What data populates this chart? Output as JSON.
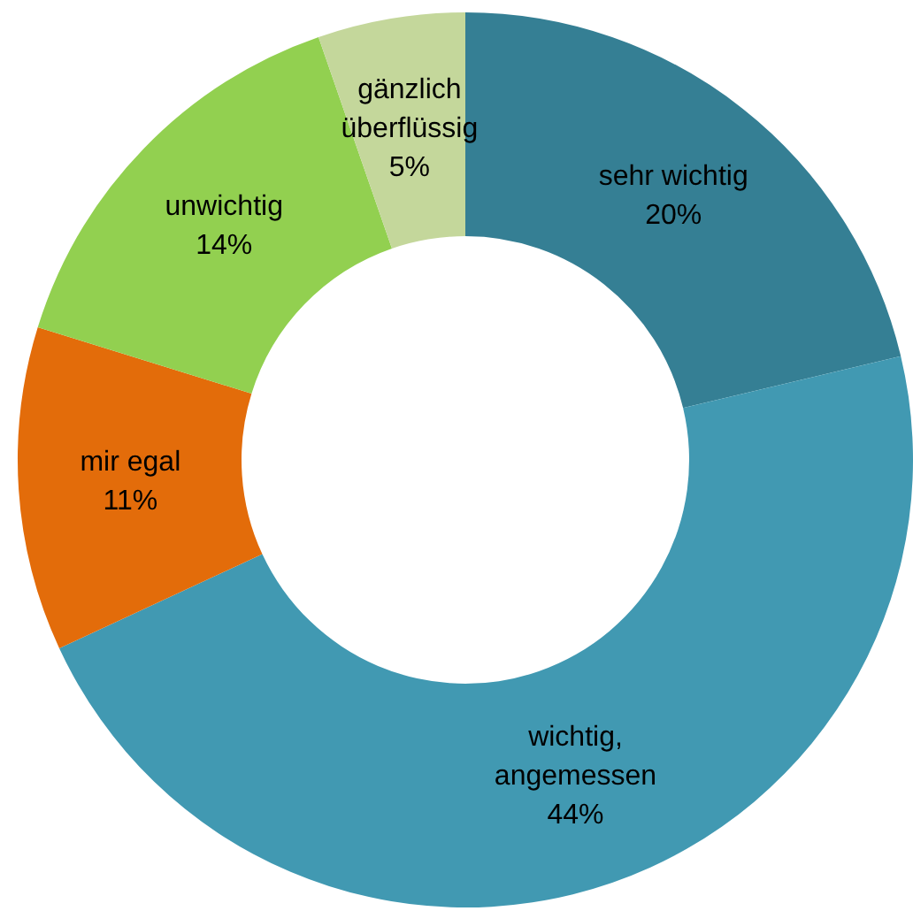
{
  "chart_data": {
    "type": "donut",
    "categories": [
      "sehr wichtig",
      "wichtig, angemessen",
      "mir egal",
      "unwichtig",
      "gänzlich überflüssig"
    ],
    "values": [
      20,
      44,
      11,
      14,
      5
    ],
    "value_labels": [
      "20%",
      "44%",
      "11%",
      "14%",
      "5%"
    ],
    "colors": [
      "#357f94",
      "#4199b2",
      "#e36c0a",
      "#92d050",
      "#c4d79b"
    ],
    "legend": false
  }
}
